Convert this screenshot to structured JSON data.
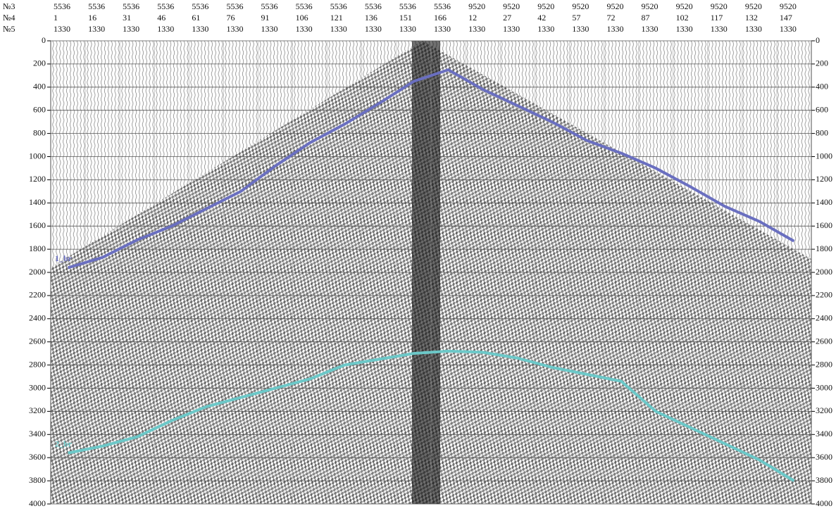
{
  "chart_data": {
    "type": "line",
    "header_rows": [
      {
        "label": "№3",
        "values": [
          "5536",
          "5536",
          "5536",
          "5536",
          "5536",
          "5536",
          "5536",
          "5536",
          "5536",
          "5536",
          "5536",
          "5536",
          "9520",
          "9520",
          "9520",
          "9520",
          "9520",
          "9520",
          "9520",
          "9520",
          "9520",
          "9520"
        ]
      },
      {
        "label": "№4",
        "values": [
          "1",
          "16",
          "31",
          "46",
          "61",
          "76",
          "91",
          "106",
          "121",
          "136",
          "151",
          "166",
          "12",
          "27",
          "42",
          "57",
          "72",
          "87",
          "102",
          "117",
          "132",
          "147"
        ]
      },
      {
        "label": "№5",
        "values": [
          "1330",
          "1330",
          "1330",
          "1330",
          "1330",
          "1330",
          "1330",
          "1330",
          "1330",
          "1330",
          "1330",
          "1330",
          "1330",
          "1330",
          "1330",
          "1330",
          "1330",
          "1330",
          "1330",
          "1330",
          "1330",
          "1330"
        ]
      }
    ],
    "ylim": [
      0,
      4000
    ],
    "yticks": [
      0,
      200,
      400,
      600,
      800,
      1000,
      1200,
      1400,
      1600,
      1800,
      2000,
      2200,
      2400,
      2600,
      2800,
      3000,
      3200,
      3400,
      3600,
      3800,
      4000
    ],
    "y_inverted": true,
    "grid": true,
    "series": [
      {
        "name": "1_br",
        "color": "#6a6fc0",
        "values": [
          1960,
          1870,
          1720,
          1600,
          1450,
          1300,
          1080,
          880,
          720,
          540,
          350,
          250,
          420,
          560,
          700,
          860,
          970,
          1100,
          1260,
          1430,
          1560,
          1730
        ]
      },
      {
        "name": "2_br",
        "color": "#6cc8c8",
        "values": [
          3560,
          3500,
          3420,
          3280,
          3160,
          3080,
          3000,
          2920,
          2800,
          2750,
          2700,
          2680,
          2690,
          2740,
          2820,
          2880,
          2940,
          3200,
          3340,
          3480,
          3620,
          3800
        ]
      }
    ]
  }
}
